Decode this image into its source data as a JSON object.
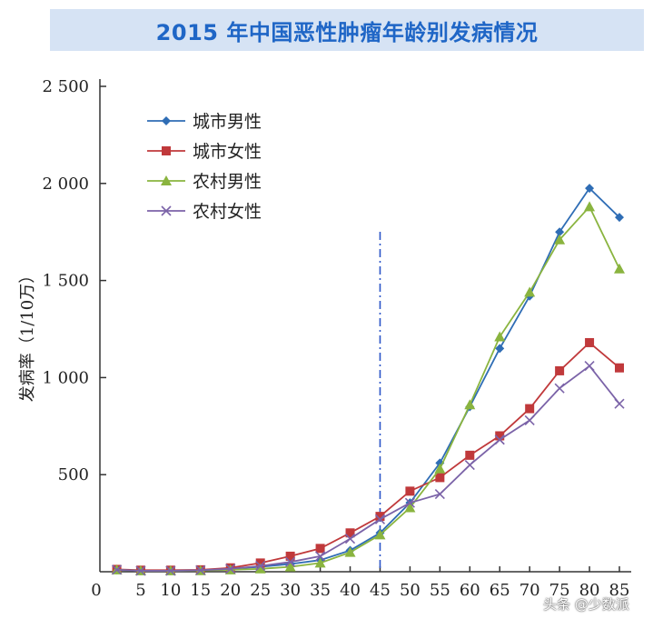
{
  "title": "2015 年中国恶性肿瘤年龄别发病情况",
  "watermark": "头条 @少数派",
  "chart_data": {
    "type": "line",
    "title": "2015 年中国恶性肿瘤年龄别发病情况",
    "xlabel": "",
    "ylabel": "发病率（1/10万）",
    "x": [
      0,
      5,
      10,
      15,
      20,
      25,
      30,
      35,
      40,
      45,
      50,
      55,
      60,
      65,
      70,
      75,
      80,
      85
    ],
    "x_tick_labels": [
      "0",
      "5",
      "10",
      "15",
      "20",
      "25",
      "30",
      "35",
      "40",
      "45",
      "50",
      "55",
      "60",
      "65",
      "70",
      "75",
      "80",
      "85"
    ],
    "xlim": [
      0,
      87
    ],
    "ylim": [
      0,
      2500
    ],
    "y_ticks": [
      500,
      1000,
      1500,
      2000,
      2500
    ],
    "y_tick_labels": [
      "500",
      "1 000",
      "1 500",
      "2 000",
      "2 500"
    ],
    "series": [
      {
        "name": "城市男性",
        "color": "#2f6db5",
        "marker": "diamond",
        "points": [
          [
            1,
            10
          ],
          [
            5,
            5
          ],
          [
            10,
            5
          ],
          [
            15,
            8
          ],
          [
            20,
            15
          ],
          [
            25,
            25
          ],
          [
            30,
            40
          ],
          [
            35,
            60
          ],
          [
            40,
            110
          ],
          [
            45,
            200
          ],
          [
            50,
            355
          ],
          [
            55,
            560
          ],
          [
            60,
            850
          ],
          [
            65,
            1150
          ],
          [
            70,
            1420
          ],
          [
            75,
            1750
          ],
          [
            80,
            1975
          ],
          [
            85,
            1825
          ]
        ]
      },
      {
        "name": "城市女性",
        "color": "#c0393b",
        "marker": "square",
        "points": [
          [
            1,
            12
          ],
          [
            5,
            8
          ],
          [
            10,
            8
          ],
          [
            15,
            10
          ],
          [
            20,
            20
          ],
          [
            25,
            45
          ],
          [
            30,
            80
          ],
          [
            35,
            120
          ],
          [
            40,
            200
          ],
          [
            45,
            285
          ],
          [
            50,
            415
          ],
          [
            55,
            485
          ],
          [
            60,
            600
          ],
          [
            65,
            700
          ],
          [
            70,
            840
          ],
          [
            75,
            1035
          ],
          [
            80,
            1180
          ],
          [
            85,
            1050
          ]
        ]
      },
      {
        "name": "农村男性",
        "color": "#8ab43f",
        "marker": "triangle",
        "points": [
          [
            1,
            10
          ],
          [
            5,
            5
          ],
          [
            10,
            5
          ],
          [
            15,
            6
          ],
          [
            20,
            10
          ],
          [
            25,
            15
          ],
          [
            30,
            25
          ],
          [
            35,
            45
          ],
          [
            40,
            100
          ],
          [
            45,
            190
          ],
          [
            50,
            330
          ],
          [
            55,
            530
          ],
          [
            60,
            860
          ],
          [
            65,
            1210
          ],
          [
            70,
            1440
          ],
          [
            75,
            1710
          ],
          [
            80,
            1880
          ],
          [
            85,
            1560
          ]
        ]
      },
      {
        "name": "农村女性",
        "color": "#7b63a8",
        "marker": "x",
        "points": [
          [
            1,
            10
          ],
          [
            5,
            5
          ],
          [
            10,
            5
          ],
          [
            15,
            8
          ],
          [
            20,
            15
          ],
          [
            25,
            30
          ],
          [
            30,
            50
          ],
          [
            35,
            80
          ],
          [
            40,
            170
          ],
          [
            45,
            270
          ],
          [
            50,
            355
          ],
          [
            55,
            400
          ],
          [
            60,
            550
          ],
          [
            65,
            680
          ],
          [
            70,
            780
          ],
          [
            75,
            945
          ],
          [
            80,
            1060
          ],
          [
            85,
            865
          ]
        ]
      }
    ],
    "reference_line": {
      "x": 45,
      "color": "#2b55c8",
      "style": "dash-dot"
    },
    "legend_position": "top-left",
    "grid": false
  }
}
